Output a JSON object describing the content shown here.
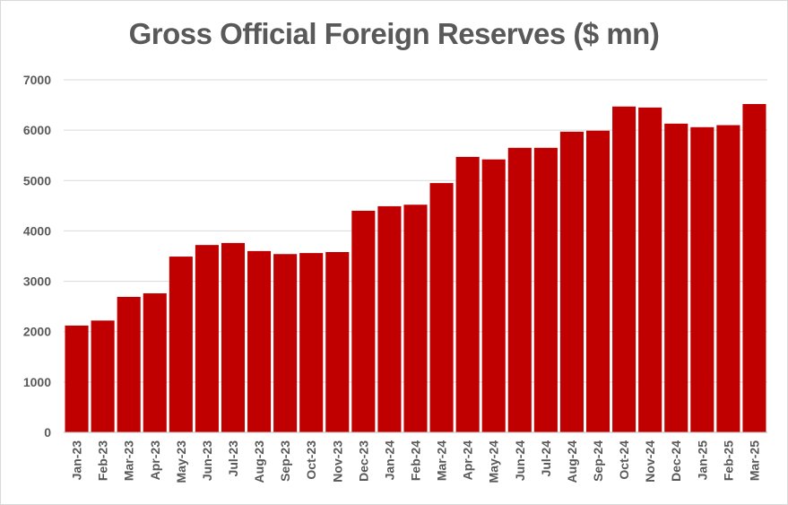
{
  "chart_data": {
    "type": "bar",
    "title": "Gross Official Foreign Reserves ($ mn)",
    "xlabel": "",
    "ylabel": "",
    "ylim": [
      0,
      7000
    ],
    "yticks": [
      0,
      1000,
      2000,
      3000,
      4000,
      5000,
      6000,
      7000
    ],
    "grid": true,
    "legend": "none",
    "bar_color": "#c00000",
    "categories": [
      "Jan-23",
      "Feb-23",
      "Mar-23",
      "Apr-23",
      "May-23",
      "Jun-23",
      "Jul-23",
      "Aug-23",
      "Sep-23",
      "Oct-23",
      "Nov-23",
      "Dec-23",
      "Jan-24",
      "Feb-24",
      "Mar-24",
      "Apr-24",
      "May-24",
      "Jun-24",
      "Jul-24",
      "Aug-24",
      "Sep-24",
      "Oct-24",
      "Nov-24",
      "Dec-24",
      "Jan-25",
      "Feb-25",
      "Mar-25"
    ],
    "values": [
      2120,
      2220,
      2690,
      2760,
      3490,
      3720,
      3760,
      3600,
      3540,
      3560,
      3580,
      4400,
      4490,
      4520,
      4950,
      5470,
      5420,
      5650,
      5650,
      5970,
      5990,
      6470,
      6450,
      6130,
      6060,
      6100,
      6520
    ]
  }
}
